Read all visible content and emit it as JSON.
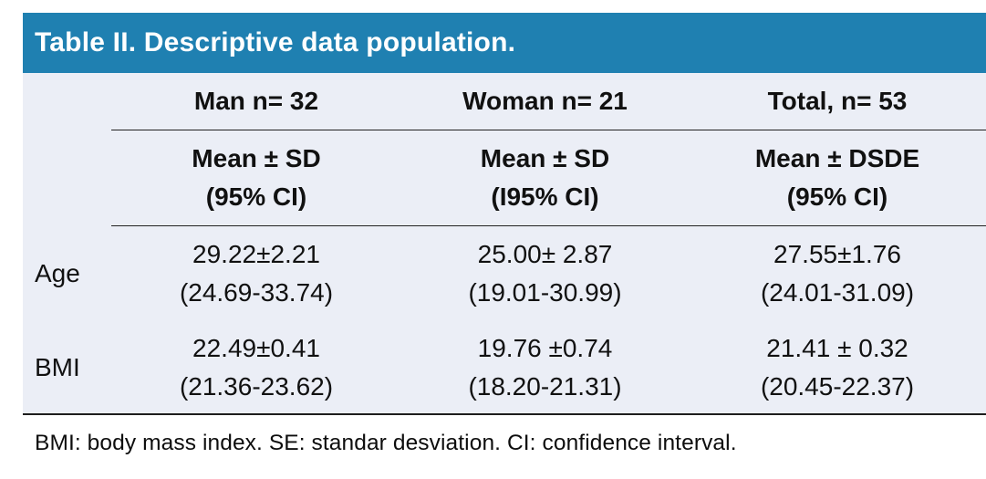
{
  "title": "Table II. Descriptive data population.",
  "colors": {
    "header_bg": "#1f80b1",
    "header_text": "#ffffff",
    "table_bg": "#ebeef6",
    "rule": "#222222"
  },
  "table": {
    "columns": [
      {
        "header": "Man n= 32",
        "sub1": "Mean ± SD",
        "sub2": "(95% CI)"
      },
      {
        "header": "Woman n= 21",
        "sub1": "Mean ± SD",
        "sub2": "(I95% CI)"
      },
      {
        "header": "Total, n= 53",
        "sub1": "Mean ± DSDE",
        "sub2": "(95% CI)"
      }
    ],
    "rows": [
      {
        "label": "Age",
        "cells": [
          {
            "l1": "29.22±2.21",
            "l2": "(24.69-33.74)"
          },
          {
            "l1": "25.00± 2.87",
            "l2": "(19.01-30.99)"
          },
          {
            "l1": "27.55±1.76",
            "l2": "(24.01-31.09)"
          }
        ]
      },
      {
        "label": "BMI",
        "cells": [
          {
            "l1": "22.49±0.41",
            "l2": "(21.36-23.62)"
          },
          {
            "l1": "19.76 ±0.74",
            "l2": "(18.20-21.31)"
          },
          {
            "l1": "21.41 ± 0.32",
            "l2": "(20.45-22.37)"
          }
        ]
      }
    ]
  },
  "footnote": "BMI: body mass index. SE: standar desviation. CI: confidence interval.",
  "chart_data": {
    "type": "table",
    "title": "Table II. Descriptive data population.",
    "column_headers": [
      "",
      "Man n= 32",
      "Woman n= 21",
      "Total, n= 53"
    ],
    "sub_headers": [
      "",
      "Mean ± SD (95% CI)",
      "Mean ± SD (I95% CI)",
      "Mean ± DSDE (95% CI)"
    ],
    "rows": [
      [
        "Age",
        "29.22±2.21 (24.69-33.74)",
        "25.00± 2.87 (19.01-30.99)",
        "27.55±1.76 (24.01-31.09)"
      ],
      [
        "BMI",
        "22.49±0.41 (21.36-23.62)",
        "19.76 ±0.74 (18.20-21.31)",
        "21.41 ± 0.32 (20.45-22.37)"
      ]
    ],
    "footnote": "BMI: body mass index. SE: standar desviation. CI: confidence interval."
  }
}
